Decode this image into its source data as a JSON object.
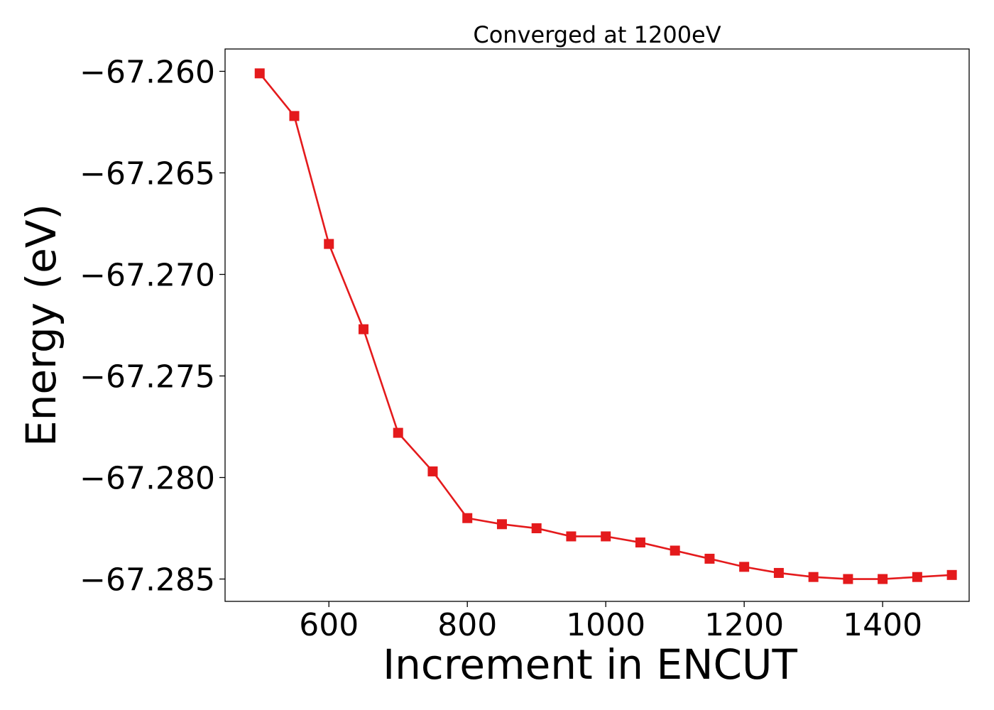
{
  "chart_data": {
    "type": "line",
    "title": "Converged at 1200eV",
    "xlabel": "Increment in ENCUT",
    "ylabel": "Energy (eV)",
    "xlim": [
      450,
      1525
    ],
    "ylim": [
      -67.2861,
      -67.2589
    ],
    "xticks": [
      600,
      800,
      1000,
      1200,
      1400
    ],
    "xtick_labels": [
      "600",
      "800",
      "1000",
      "1200",
      "1400"
    ],
    "yticks": [
      -67.26,
      -67.265,
      -67.27,
      -67.275,
      -67.28,
      -67.285
    ],
    "ytick_labels": [
      "−67.260",
      "−67.265",
      "−67.270",
      "−67.275",
      "−67.280",
      "−67.285"
    ],
    "grid": false,
    "series": [
      {
        "color": "#e41a1c",
        "marker": "square",
        "x": [
          500,
          550,
          600,
          650,
          700,
          750,
          800,
          850,
          900,
          950,
          1000,
          1050,
          1100,
          1150,
          1200,
          1250,
          1300,
          1350,
          1400,
          1450,
          1500
        ],
        "y": [
          -67.2601,
          -67.2622,
          -67.2685,
          -67.2727,
          -67.2778,
          -67.2797,
          -67.282,
          -67.2823,
          -67.2825,
          -67.2829,
          -67.2829,
          -67.2832,
          -67.2836,
          -67.284,
          -67.2844,
          -67.2847,
          -67.2849,
          -67.285,
          -67.285,
          -67.2849,
          -67.2848
        ]
      }
    ]
  }
}
